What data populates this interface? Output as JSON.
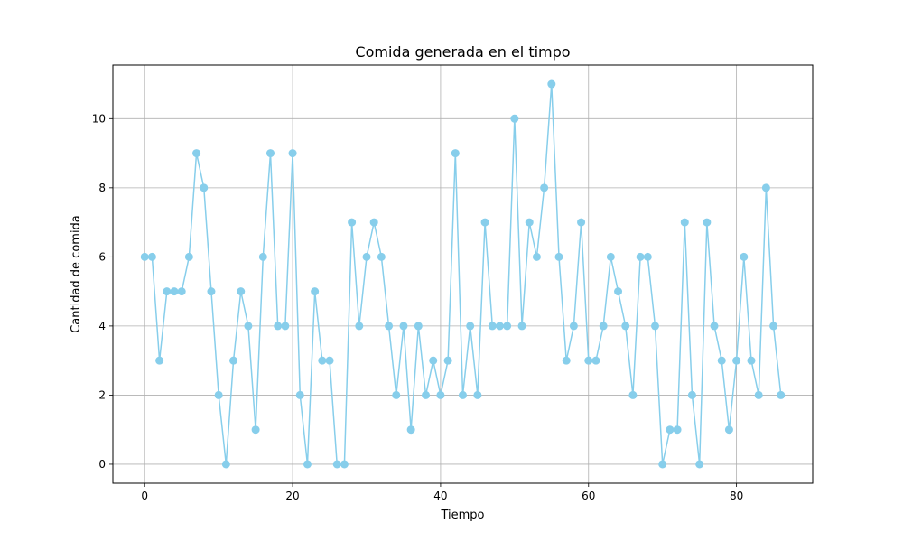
{
  "chart_data": {
    "type": "line",
    "title": "Comida generada en el timpo",
    "xlabel": "Tiempo",
    "ylabel": "Cantidad de comida",
    "xlim": [
      -4.3,
      90.3
    ],
    "ylim": [
      -0.55,
      11.55
    ],
    "xticks": [
      0,
      20,
      40,
      60,
      80
    ],
    "yticks": [
      0,
      2,
      4,
      6,
      8,
      10
    ],
    "grid": true,
    "line_color": "#87CEEB",
    "series": [
      {
        "values": [
          6,
          6,
          3,
          5,
          5,
          5,
          6,
          9,
          8,
          5,
          2,
          0,
          3,
          5,
          4,
          1,
          6,
          9,
          4,
          4,
          9,
          2,
          0,
          5,
          3,
          3,
          0,
          0,
          7,
          4,
          6,
          7,
          6,
          4,
          2,
          4,
          1,
          4,
          2,
          3,
          2,
          3,
          9,
          2,
          4,
          2,
          7,
          4,
          4,
          4,
          10,
          4,
          7,
          6,
          8,
          11,
          6,
          3,
          4,
          7,
          3,
          3,
          4,
          6,
          5,
          4,
          2,
          6,
          6,
          4,
          0,
          1,
          1,
          7,
          2,
          0,
          7,
          4,
          3,
          1,
          3,
          6,
          3,
          2,
          8,
          4,
          2
        ]
      }
    ]
  }
}
